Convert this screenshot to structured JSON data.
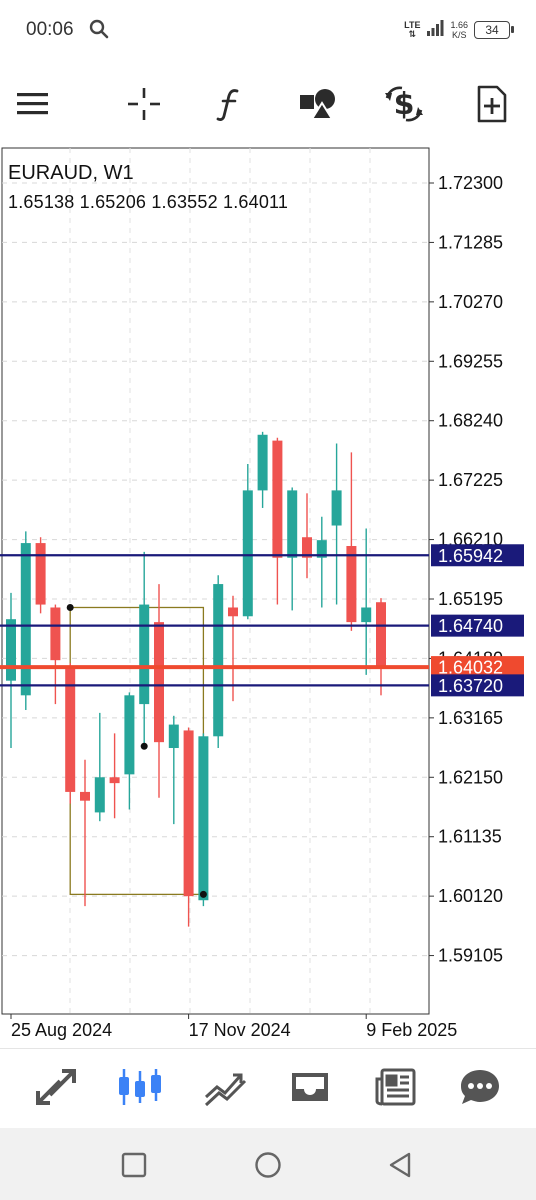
{
  "status_bar": {
    "time": "00:06",
    "network": "LTE",
    "speed_value": "1.66",
    "speed_unit": "K/S",
    "battery": "34"
  },
  "toolbar": {
    "icons": [
      "menu-icon",
      "crosshair-icon",
      "indicators-icon",
      "objects-icon",
      "trade-icon",
      "new-order-icon"
    ]
  },
  "chart": {
    "symbol_timeframe": "EURAUD, W1",
    "ohlc": "1.65138 1.65206 1.63552 1.64011",
    "colors": {
      "bull": "#26a69a",
      "bear": "#ef5350",
      "level": "#1a1a7a",
      "current": "#ef4a2f",
      "rect": "#8a7a20"
    }
  },
  "chart_data": {
    "type": "candlestick",
    "title": "EURAUD, W1",
    "ylim": [
      1.5809,
      1.7295
    ],
    "y_ticks": [
      "1.72300",
      "1.71285",
      "1.70270",
      "1.69255",
      "1.68240",
      "1.67225",
      "1.66210",
      "1.65195",
      "1.64180",
      "1.63165",
      "1.62150",
      "1.61135",
      "1.60120",
      "1.59105"
    ],
    "x_tick_labels": [
      {
        "label": "25 Aug 2024",
        "index": 0
      },
      {
        "label": "17 Nov 2024",
        "index": 12
      },
      {
        "label": "9 Feb 2025",
        "index": 24
      }
    ],
    "candles": [
      {
        "o": 1.638,
        "h": 1.653,
        "l": 1.6265,
        "c": 1.6485
      },
      {
        "o": 1.6355,
        "h": 1.6635,
        "l": 1.633,
        "c": 1.6615
      },
      {
        "o": 1.6615,
        "h": 1.6625,
        "l": 1.6495,
        "c": 1.651
      },
      {
        "o": 1.6505,
        "h": 1.651,
        "l": 1.634,
        "c": 1.6415
      },
      {
        "o": 1.6405,
        "h": 1.641,
        "l": 1.617,
        "c": 1.619
      },
      {
        "o": 1.619,
        "h": 1.6245,
        "l": 1.5995,
        "c": 1.6175
      },
      {
        "o": 1.6155,
        "h": 1.6325,
        "l": 1.614,
        "c": 1.6215
      },
      {
        "o": 1.6215,
        "h": 1.629,
        "l": 1.6145,
        "c": 1.6205
      },
      {
        "o": 1.622,
        "h": 1.636,
        "l": 1.616,
        "c": 1.6355
      },
      {
        "o": 1.634,
        "h": 1.66,
        "l": 1.627,
        "c": 1.651
      },
      {
        "o": 1.648,
        "h": 1.6545,
        "l": 1.618,
        "c": 1.6275
      },
      {
        "o": 1.6265,
        "h": 1.632,
        "l": 1.6135,
        "c": 1.6305
      },
      {
        "o": 1.6295,
        "h": 1.63,
        "l": 1.596,
        "c": 1.6012
      },
      {
        "o": 1.6005,
        "h": 1.629,
        "l": 1.5995,
        "c": 1.6285
      },
      {
        "o": 1.6285,
        "h": 1.656,
        "l": 1.6265,
        "c": 1.6545
      },
      {
        "o": 1.6505,
        "h": 1.6525,
        "l": 1.6345,
        "c": 1.649
      },
      {
        "o": 1.649,
        "h": 1.675,
        "l": 1.6485,
        "c": 1.6705
      },
      {
        "o": 1.6705,
        "h": 1.6805,
        "l": 1.6675,
        "c": 1.68
      },
      {
        "o": 1.679,
        "h": 1.6795,
        "l": 1.651,
        "c": 1.659
      },
      {
        "o": 1.659,
        "h": 1.671,
        "l": 1.65,
        "c": 1.6705
      },
      {
        "o": 1.6625,
        "h": 1.67,
        "l": 1.6555,
        "c": 1.659
      },
      {
        "o": 1.659,
        "h": 1.666,
        "l": 1.6505,
        "c": 1.662
      },
      {
        "o": 1.6645,
        "h": 1.6785,
        "l": 1.651,
        "c": 1.6705
      },
      {
        "o": 1.661,
        "h": 1.677,
        "l": 1.6465,
        "c": 1.648
      },
      {
        "o": 1.648,
        "h": 1.664,
        "l": 1.639,
        "c": 1.6505
      },
      {
        "o": 1.6514,
        "h": 1.6521,
        "l": 1.6355,
        "c": 1.6401
      }
    ],
    "horizontal_levels": [
      {
        "label": "1.65942",
        "price": 1.65942
      },
      {
        "label": "1.64740",
        "price": 1.6474
      },
      {
        "label": "1.63720",
        "price": 1.6372
      }
    ],
    "current_price": {
      "label": "1.64032",
      "price": 1.64032
    },
    "rectangle": {
      "from_index": 4,
      "to_index": 13,
      "top": 1.6505,
      "bottom": 1.6015
    },
    "points": [
      {
        "index": 4,
        "price": 1.6505
      },
      {
        "index": 9,
        "price": 1.6268
      },
      {
        "index": 13,
        "price": 1.6015
      }
    ]
  },
  "bottom_nav": {
    "tabs": [
      {
        "icon": "quotes-icon",
        "active": false
      },
      {
        "icon": "chart-icon",
        "active": true
      },
      {
        "icon": "trade-icon",
        "active": false
      },
      {
        "icon": "history-icon",
        "active": false
      },
      {
        "icon": "news-icon",
        "active": false
      },
      {
        "icon": "messages-icon",
        "active": false
      }
    ],
    "active_color": "#3b82f6"
  }
}
